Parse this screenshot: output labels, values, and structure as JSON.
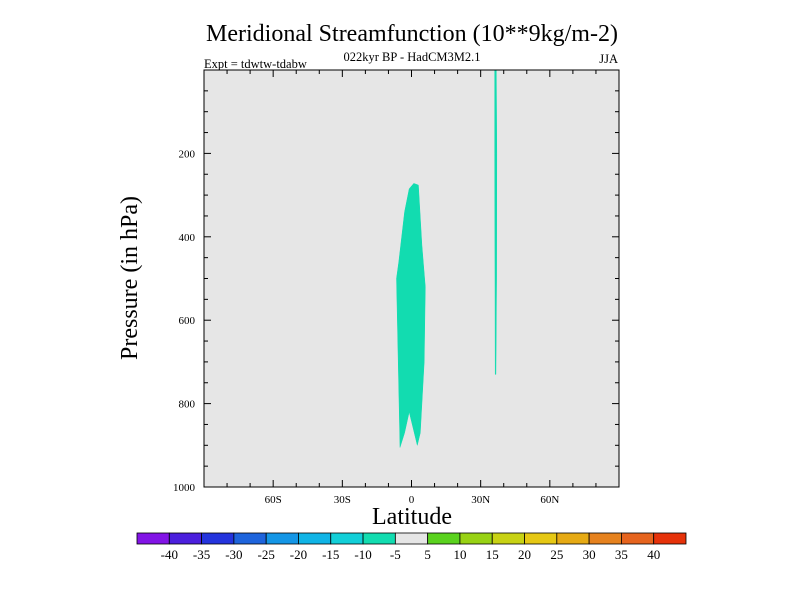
{
  "chart_data": {
    "type": "contour",
    "title": "Meridional Streamfunction (10**9kg/m-2)",
    "subtitle": "022kyr BP - HadCM3M2.1",
    "experiment": "Expt = tdwtw-tdabw",
    "season": "JJA",
    "xlabel": "Latitude",
    "ylabel": "Pressure (in hPa)",
    "xlim": [
      -90,
      90
    ],
    "ylim": [
      1000,
      0
    ],
    "x_ticks": [
      {
        "value": -60,
        "label": "60S"
      },
      {
        "value": -30,
        "label": "30S"
      },
      {
        "value": 0,
        "label": "0"
      },
      {
        "value": 30,
        "label": "30N"
      },
      {
        "value": 60,
        "label": "60N"
      }
    ],
    "y_ticks": [
      {
        "value": 200,
        "label": "200"
      },
      {
        "value": 400,
        "label": "400"
      },
      {
        "value": 600,
        "label": "600"
      },
      {
        "value": 800,
        "label": "800"
      },
      {
        "value": 1000,
        "label": "1000"
      }
    ],
    "background_class": "-5 to 5",
    "regions": [
      {
        "name": "equatorial-negative-cell",
        "range": "-10 to -5",
        "color": "#12dcb0",
        "points": [
          [
            -5,
            905
          ],
          [
            -6.5,
            500
          ],
          [
            -5.5,
            460
          ],
          [
            -3,
            340
          ],
          [
            -1,
            285
          ],
          [
            1,
            272
          ],
          [
            3,
            276
          ],
          [
            4.5,
            420
          ],
          [
            6,
            520
          ],
          [
            5.5,
            700
          ],
          [
            3.8,
            870
          ],
          [
            2.5,
            900
          ],
          [
            -1,
            820
          ],
          [
            -3,
            870
          ]
        ]
      },
      {
        "name": "northern-narrow-cell",
        "range": "-10 to -5",
        "color": "#12dcb0",
        "points": [
          [
            36.1,
            0
          ],
          [
            36.8,
            0
          ],
          [
            37.0,
            200
          ],
          [
            36.9,
            500
          ],
          [
            36.6,
            730
          ],
          [
            36.3,
            730
          ],
          [
            36.2,
            500
          ],
          [
            36.1,
            200
          ]
        ]
      }
    ],
    "colorbar": {
      "labels": [
        "-40",
        "-35",
        "-30",
        "-25",
        "-20",
        "-15",
        "-10",
        "-5",
        "5",
        "10",
        "15",
        "20",
        "25",
        "30",
        "35",
        "40"
      ],
      "colors": [
        "#8214e6",
        "#4b1fdd",
        "#2434dd",
        "#1e64dc",
        "#1496e6",
        "#10b4e6",
        "#12cfd8",
        "#12dcb0",
        "#e6e6e6",
        "#5ad21e",
        "#98d214",
        "#c8d214",
        "#e6c814",
        "#e6aa14",
        "#e6821e",
        "#e6641e",
        "#e6320a"
      ]
    }
  },
  "colors": {
    "plot_background": "#e6e6e6",
    "axis": "#000000"
  }
}
